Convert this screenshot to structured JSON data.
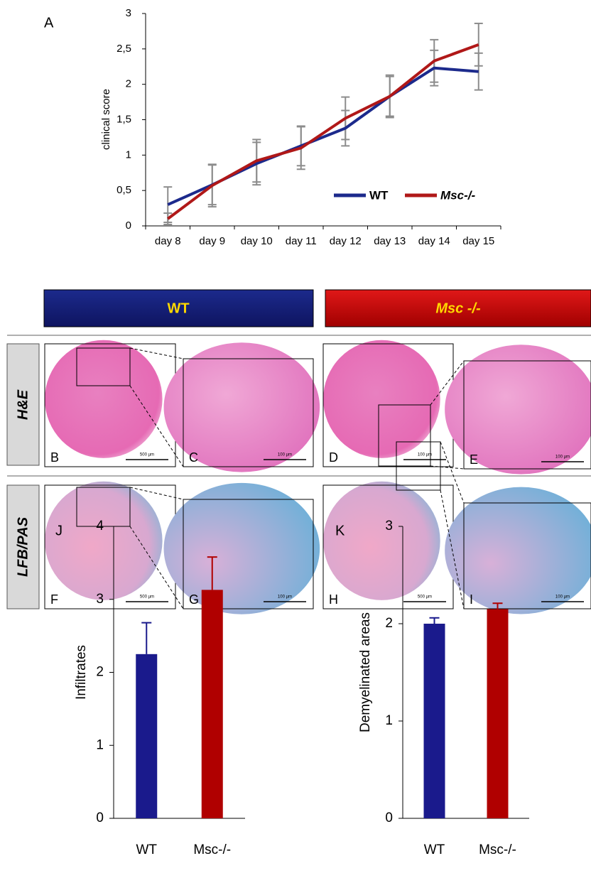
{
  "chart_data": [
    {
      "type": "line",
      "panel_label": "A",
      "y_label": "clinical score",
      "categories": [
        "day 8",
        "day 9",
        "day 10",
        "day 11",
        "day 12",
        "day 13",
        "day 14",
        "day 15"
      ],
      "series": [
        {
          "name": "WT",
          "color": "#1c2a8c",
          "values": [
            0.3,
            0.58,
            0.88,
            1.13,
            1.38,
            1.83,
            2.23,
            2.18
          ],
          "errors": [
            0.25,
            0.28,
            0.3,
            0.28,
            0.25,
            0.28,
            0.25,
            0.26
          ]
        },
        {
          "name": "Msc-/-",
          "color": "#b01818",
          "values": [
            0.1,
            0.57,
            0.92,
            1.1,
            1.52,
            1.83,
            2.33,
            2.56
          ],
          "errors": [
            0.08,
            0.3,
            0.3,
            0.3,
            0.3,
            0.3,
            0.3,
            0.3
          ]
        }
      ],
      "ylim": [
        0,
        3
      ],
      "yticks": [
        0,
        {
          "value": 0.5,
          "label": "0,5"
        },
        1,
        {
          "value": 1.5,
          "label": "1,5"
        },
        2,
        {
          "value": 2.5,
          "label": "2,5"
        },
        3
      ],
      "error_color": "#8c8c8c"
    },
    {
      "type": "bar",
      "panel_label": "J",
      "y_label": "Infiltrates",
      "categories": [
        "WT",
        "Msc-/-"
      ],
      "values": [
        2.25,
        3.13
      ],
      "errors": [
        0.43,
        0.45
      ],
      "colors": [
        "#1a1a8c",
        "#b00000"
      ],
      "ylim": [
        0,
        4
      ],
      "yticks": [
        0,
        1,
        2,
        3,
        4
      ]
    },
    {
      "type": "bar",
      "panel_label": "K",
      "y_label": "Demyelinated areas",
      "categories": [
        "WT",
        "Msc-/-"
      ],
      "values": [
        2.0,
        2.15
      ],
      "errors": [
        0.06,
        0.06
      ],
      "colors": [
        "#1a1a8c",
        "#b00000"
      ],
      "ylim": [
        0,
        3
      ],
      "yticks": [
        0,
        1,
        2,
        3
      ]
    }
  ],
  "figure": {
    "column_headers": [
      "WT",
      "Msc -/-"
    ],
    "row_labels": [
      "H&E",
      "LFB/PAS"
    ],
    "panels": [
      {
        "label": "B",
        "scale": "500 µm"
      },
      {
        "label": "C",
        "scale": "100 µm"
      },
      {
        "label": "D",
        "scale": "100 µm"
      },
      {
        "label": "E",
        "scale": "100 µm"
      },
      {
        "label": "F",
        "scale": "500 µm"
      },
      {
        "label": "G",
        "scale": "100 µm"
      },
      {
        "label": "H",
        "scale": "500 µm"
      },
      {
        "label": "I",
        "scale": "100 µm"
      }
    ]
  }
}
